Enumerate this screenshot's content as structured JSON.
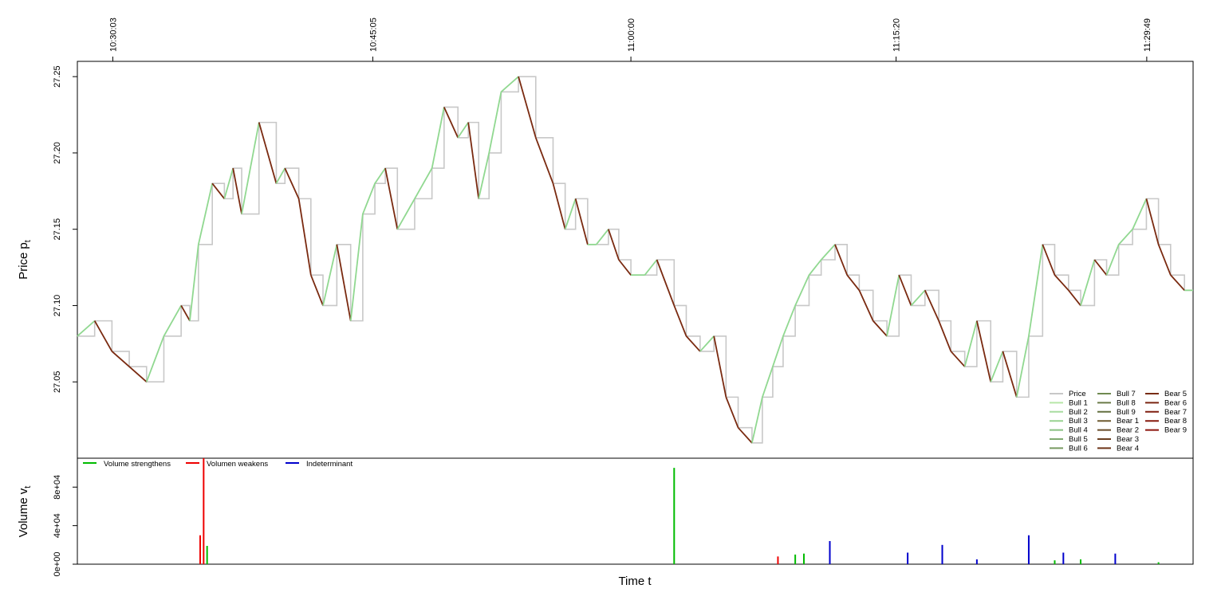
{
  "chart_data": [
    {
      "type": "line",
      "panel": "price",
      "title": "",
      "ylabel": "Price",
      "ylabel_sub": "t",
      "ylabel_var": "p",
      "ylim": [
        27.0,
        27.26
      ],
      "yticks": [
        "27.05",
        "27.10",
        "27.15",
        "27.20",
        "27.25"
      ],
      "ytick_values": [
        27.05,
        27.1,
        27.15,
        27.2,
        27.25
      ],
      "xlim": [
        -2.0,
        62.5
      ],
      "xticks": [
        {
          "value": 0.05,
          "label": "10:30:03"
        },
        {
          "value": 15.08,
          "label": "10:45:05"
        },
        {
          "value": 30.0,
          "label": "11:00:00"
        },
        {
          "value": 45.33,
          "label": "11:15:20"
        },
        {
          "value": 59.82,
          "label": "11:29:49"
        }
      ],
      "colors": {
        "price": "#c8c8c8",
        "bull": "#90d890",
        "bear": "#7a2a10"
      },
      "price_x": [
        -2.0,
        -1.0,
        0.0,
        1.0,
        2.0,
        3.0,
        4.0,
        4.5,
        5.0,
        5.8,
        6.5,
        7.0,
        7.5,
        8.5,
        9.5,
        10.0,
        10.8,
        11.5,
        12.2,
        13.0,
        13.8,
        14.5,
        15.2,
        15.8,
        16.5,
        17.5,
        18.5,
        19.2,
        20.0,
        20.6,
        21.2,
        21.8,
        22.5,
        23.5,
        24.5,
        25.5,
        26.2,
        26.8,
        27.5,
        28.0,
        28.7,
        29.3,
        30.0,
        30.8,
        31.5,
        32.5,
        33.2,
        34.0,
        34.8,
        35.5,
        36.2,
        37.0,
        37.6,
        38.2,
        38.8,
        39.5,
        40.3,
        41.0,
        41.8,
        42.5,
        43.2,
        44.0,
        44.8,
        45.5,
        46.2,
        47.0,
        47.8,
        48.5,
        49.3,
        50.0,
        50.8,
        51.5,
        52.3,
        53.0,
        53.8,
        54.5,
        55.3,
        56.0,
        56.8,
        57.5,
        58.2,
        59.0,
        59.8,
        60.5,
        61.2,
        62.0,
        62.5
      ],
      "price_y": [
        27.08,
        27.09,
        27.07,
        27.06,
        27.05,
        27.08,
        27.1,
        27.09,
        27.14,
        27.18,
        27.17,
        27.19,
        27.16,
        27.22,
        27.18,
        27.19,
        27.17,
        27.12,
        27.1,
        27.14,
        27.09,
        27.16,
        27.18,
        27.19,
        27.15,
        27.17,
        27.19,
        27.23,
        27.21,
        27.22,
        27.17,
        27.2,
        27.24,
        27.25,
        27.21,
        27.18,
        27.15,
        27.17,
        27.14,
        27.14,
        27.15,
        27.13,
        27.12,
        27.12,
        27.13,
        27.1,
        27.08,
        27.07,
        27.08,
        27.04,
        27.02,
        27.01,
        27.04,
        27.06,
        27.08,
        27.1,
        27.12,
        27.13,
        27.14,
        27.12,
        27.11,
        27.09,
        27.08,
        27.12,
        27.1,
        27.11,
        27.09,
        27.07,
        27.06,
        27.09,
        27.05,
        27.07,
        27.04,
        27.08,
        27.14,
        27.12,
        27.11,
        27.1,
        27.13,
        27.12,
        27.14,
        27.15,
        27.17,
        27.14,
        27.12,
        27.11,
        27.11
      ],
      "legend": {
        "columns": [
          [
            "Price",
            "Bull 1",
            "Bull 2",
            "Bull 3",
            "Bull 4",
            "Bull 5",
            "Bull 6"
          ],
          [
            "Bull 7",
            "Bull 8",
            "Bull 9",
            "Bear 1",
            "Bear 2",
            "Bear 3",
            "Bear 4"
          ],
          [
            "Bear 5",
            "Bear 6",
            "Bear 7",
            "Bear 8",
            "Bear 9"
          ]
        ],
        "colors": [
          [
            "#c8c8c8",
            "#b8e6a8",
            "#a8dca0",
            "#98d290",
            "#88c080",
            "#80aa70",
            "#789a60"
          ],
          [
            "#708a50",
            "#6a7a48",
            "#647040",
            "#6e5a30",
            "#684a28",
            "#6a3e20",
            "#6e3418"
          ],
          [
            "#782c14",
            "#7a2612",
            "#801e10",
            "#861a0e",
            "#8c140c"
          ]
        ],
        "placement": "bottom-right"
      }
    },
    {
      "type": "bar",
      "panel": "volume",
      "title": "",
      "ylabel": "Volume",
      "ylabel_sub": "t",
      "ylabel_var": "v",
      "xlabel": "Time t",
      "ylim": [
        0,
        110000
      ],
      "yticks": [
        "0e+00",
        "4e+04",
        "8e+04"
      ],
      "ytick_values": [
        0,
        40000,
        80000
      ],
      "series": [
        {
          "name": "Volume strengthens",
          "color": "#00bb00",
          "x": [
            5.5,
            32.5,
            39.5,
            40.0,
            54.5,
            56.0,
            60.5
          ],
          "values": [
            19000,
            100000,
            10000,
            11000,
            4000,
            5000,
            2000
          ]
        },
        {
          "name": "Volumen weakens",
          "color": "#ee0000",
          "x": [
            5.1,
            5.3,
            38.5
          ],
          "values": [
            30000,
            110000,
            8000
          ]
        },
        {
          "name": "Indeterminant",
          "color": "#0000cc",
          "x": [
            41.5,
            46.0,
            48.0,
            50.0,
            53.0,
            55.0,
            58.0
          ],
          "values": [
            24000,
            12000,
            20000,
            5000,
            30000,
            12000,
            11000
          ]
        }
      ],
      "legend_placement": "top-left"
    }
  ]
}
